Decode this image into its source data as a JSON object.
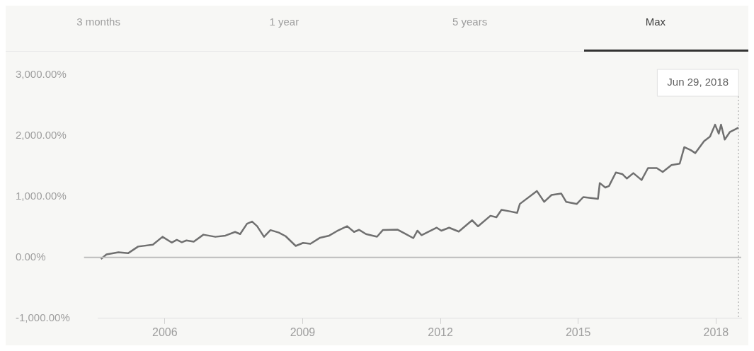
{
  "chart_data": {
    "type": "line",
    "annotations": [
      "3 months",
      "1 year",
      "5 years",
      "Max"
    ],
    "x": [
      2004.61,
      2004.73,
      2004.99,
      2005.2,
      2005.42,
      2005.74,
      2005.95,
      2006.15,
      2006.26,
      2006.37,
      2006.47,
      2006.63,
      2006.84,
      2007.1,
      2007.32,
      2007.53,
      2007.64,
      2007.79,
      2007.9,
      2008.01,
      2008.16,
      2008.3,
      2008.48,
      2008.63,
      2008.85,
      2009.01,
      2009.17,
      2009.38,
      2009.58,
      2009.75,
      2009.97,
      2010.12,
      2010.23,
      2010.38,
      2010.62,
      2010.75,
      2011.07,
      2011.23,
      2011.41,
      2011.5,
      2011.59,
      2011.92,
      2012.02,
      2012.19,
      2012.4,
      2012.69,
      2012.82,
      2013.09,
      2013.22,
      2013.33,
      2013.51,
      2013.67,
      2013.73,
      2014.1,
      2014.26,
      2014.42,
      2014.63,
      2014.74,
      2014.97,
      2015.11,
      2015.43,
      2015.47,
      2015.59,
      2015.67,
      2015.82,
      2015.96,
      2016.06,
      2016.2,
      2016.38,
      2016.52,
      2016.71,
      2016.84,
      2017.03,
      2017.21,
      2017.31,
      2017.45,
      2017.55,
      2017.74,
      2017.87,
      2017.98,
      2018.06,
      2018.11,
      2018.19,
      2018.3,
      2018.49
    ],
    "series": [
      {
        "color": "#707070",
        "values": [
          -25,
          50,
          85,
          70,
          180,
          210,
          340,
          245,
          290,
          250,
          280,
          260,
          375,
          340,
          360,
          420,
          385,
          555,
          590,
          515,
          340,
          450,
          410,
          350,
          190,
          240,
          225,
          325,
          360,
          435,
          515,
          420,
          455,
          385,
          342,
          453,
          457,
          392,
          318,
          441,
          367,
          490,
          440,
          490,
          426,
          612,
          513,
          686,
          661,
          784,
          759,
          734,
          881,
          1093,
          915,
          1028,
          1052,
          914,
          880,
          993,
          963,
          1224,
          1150,
          1175,
          1397,
          1372,
          1298,
          1387,
          1274,
          1470,
          1470,
          1406,
          1519,
          1543,
          1814,
          1765,
          1716,
          1913,
          1987,
          2184,
          2036,
          2184,
          1938,
          2061,
          2135
        ]
      }
    ],
    "xlim": [
      2004.55,
      2018.55
    ],
    "xticks": [
      2006,
      2009,
      2012,
      2015,
      2018
    ],
    "ylim": [
      -1000,
      3000
    ],
    "yticks": [
      {
        "value": -1000,
        "label": "-1,000.00%"
      },
      {
        "value": 0,
        "label": "0.00%"
      },
      {
        "value": 1000,
        "label": "1,000.00%"
      },
      {
        "value": 2000,
        "label": "2,000.00%"
      },
      {
        "value": 3000,
        "label": "3,000.00%"
      }
    ],
    "ref_lines": [
      {
        "axis": "y",
        "value": 0,
        "color": "#bdbdbd",
        "line_style": "solid"
      },
      {
        "axis": "x",
        "value": 2018.49,
        "label": "Jun 29, 2018",
        "color": "#9e9e9e",
        "line_style": "dotted"
      }
    ],
    "grid": false,
    "legend": false,
    "marker": "none",
    "line_style": "solid"
  }
}
